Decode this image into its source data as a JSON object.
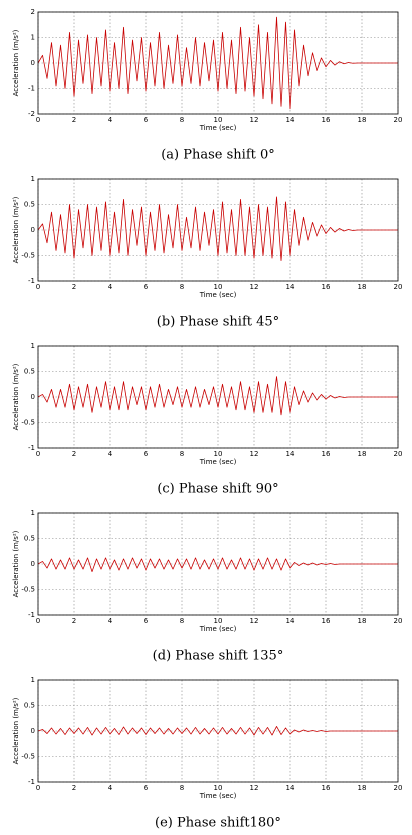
{
  "chart_data": [
    {
      "type": "line",
      "caption": "(a) Phase shift 0°",
      "xlabel": "Time (sec)",
      "ylabel": "Acceleration (m/s²)",
      "grid": true,
      "xlim": [
        0,
        20
      ],
      "xticks": [
        0,
        2,
        4,
        6,
        8,
        10,
        12,
        14,
        16,
        18,
        20
      ],
      "ylim": [
        -2,
        2
      ],
      "yticks": [
        -2,
        -1,
        0,
        1,
        2
      ],
      "x": [
        0,
        0.25,
        0.5,
        0.75,
        1,
        1.25,
        1.5,
        1.75,
        2,
        2.25,
        2.5,
        2.75,
        3,
        3.25,
        3.5,
        3.75,
        4,
        4.25,
        4.5,
        4.75,
        5,
        5.25,
        5.5,
        5.75,
        6,
        6.25,
        6.5,
        6.75,
        7,
        7.25,
        7.5,
        7.75,
        8,
        8.25,
        8.5,
        8.75,
        9,
        9.25,
        9.5,
        9.75,
        10,
        10.25,
        10.5,
        10.75,
        11,
        11.25,
        11.5,
        11.75,
        12,
        12.25,
        12.5,
        12.75,
        13,
        13.25,
        13.5,
        13.75,
        14,
        14.25,
        14.5,
        14.75,
        15,
        15.25,
        15.5,
        15.75,
        16,
        16.25,
        16.5,
        16.75,
        17,
        17.25,
        17.5,
        17.75,
        18,
        18.25,
        18.5,
        18.75,
        19,
        19.25,
        19.5,
        19.75,
        20
      ],
      "series": [
        {
          "color": "#c80000",
          "values": [
            0,
            0.3,
            -0.6,
            0.8,
            -0.9,
            0.7,
            -1.0,
            1.2,
            -1.3,
            0.9,
            -0.8,
            1.1,
            -1.2,
            1.0,
            -0.9,
            1.3,
            -1.1,
            0.8,
            -1.0,
            1.4,
            -1.2,
            0.9,
            -0.7,
            1.0,
            -1.1,
            0.8,
            -0.9,
            1.2,
            -1.0,
            0.7,
            -0.8,
            1.1,
            -0.9,
            0.6,
            -0.8,
            1.0,
            -0.9,
            0.8,
            -0.7,
            0.9,
            -1.1,
            1.2,
            -1.0,
            0.9,
            -1.2,
            1.4,
            -1.1,
            1.0,
            -1.3,
            1.5,
            -1.4,
            1.2,
            -1.6,
            1.8,
            -1.7,
            1.6,
            -1.8,
            1.3,
            -0.9,
            0.7,
            -0.5,
            0.4,
            -0.3,
            0.2,
            -0.15,
            0.1,
            -0.08,
            0.05,
            -0.03,
            0.02,
            -0.01,
            0,
            0,
            0,
            0,
            0,
            0,
            0,
            0,
            0,
            0
          ]
        }
      ]
    },
    {
      "type": "line",
      "caption": "(b) Phase shift 45°",
      "xlabel": "Time (sec)",
      "ylabel": "Acceleration (m/s²)",
      "grid": true,
      "xlim": [
        0,
        20
      ],
      "xticks": [
        0,
        2,
        4,
        6,
        8,
        10,
        12,
        14,
        16,
        18,
        20
      ],
      "ylim": [
        -1,
        1
      ],
      "yticks": [
        -1,
        -0.5,
        0,
        0.5,
        1
      ],
      "x": [
        0,
        0.25,
        0.5,
        0.75,
        1,
        1.25,
        1.5,
        1.75,
        2,
        2.25,
        2.5,
        2.75,
        3,
        3.25,
        3.5,
        3.75,
        4,
        4.25,
        4.5,
        4.75,
        5,
        5.25,
        5.5,
        5.75,
        6,
        6.25,
        6.5,
        6.75,
        7,
        7.25,
        7.5,
        7.75,
        8,
        8.25,
        8.5,
        8.75,
        9,
        9.25,
        9.5,
        9.75,
        10,
        10.25,
        10.5,
        10.75,
        11,
        11.25,
        11.5,
        11.75,
        12,
        12.25,
        12.5,
        12.75,
        13,
        13.25,
        13.5,
        13.75,
        14,
        14.25,
        14.5,
        14.75,
        15,
        15.25,
        15.5,
        15.75,
        16,
        16.25,
        16.5,
        16.75,
        17,
        17.25,
        17.5,
        17.75,
        18,
        18.25,
        18.5,
        18.75,
        19,
        19.25,
        19.5,
        19.75,
        20
      ],
      "series": [
        {
          "color": "#c80000",
          "values": [
            0,
            0.12,
            -0.25,
            0.35,
            -0.4,
            0.3,
            -0.45,
            0.5,
            -0.55,
            0.4,
            -0.35,
            0.5,
            -0.5,
            0.45,
            -0.4,
            0.55,
            -0.5,
            0.35,
            -0.45,
            0.6,
            -0.5,
            0.4,
            -0.3,
            0.45,
            -0.5,
            0.35,
            -0.4,
            0.5,
            -0.45,
            0.3,
            -0.35,
            0.5,
            -0.4,
            0.25,
            -0.35,
            0.45,
            -0.4,
            0.35,
            -0.3,
            0.4,
            -0.5,
            0.55,
            -0.45,
            0.4,
            -0.5,
            0.6,
            -0.5,
            0.45,
            -0.55,
            0.5,
            -0.5,
            0.45,
            -0.55,
            0.65,
            -0.6,
            0.55,
            -0.5,
            0.4,
            -0.3,
            0.25,
            -0.2,
            0.15,
            -0.12,
            0.1,
            -0.07,
            0.05,
            -0.04,
            0.03,
            -0.02,
            0.01,
            -0.01,
            0,
            0,
            0,
            0,
            0,
            0,
            0,
            0,
            0,
            0
          ]
        }
      ]
    },
    {
      "type": "line",
      "caption": "(c) Phase shift 90°",
      "xlabel": "Time (sec)",
      "ylabel": "Acceleration (m/s²)",
      "grid": true,
      "xlim": [
        0,
        20
      ],
      "xticks": [
        0,
        2,
        4,
        6,
        8,
        10,
        12,
        14,
        16,
        18,
        20
      ],
      "ylim": [
        -1,
        1
      ],
      "yticks": [
        -1,
        -0.5,
        0,
        0.5,
        1
      ],
      "x": [
        0,
        0.25,
        0.5,
        0.75,
        1,
        1.25,
        1.5,
        1.75,
        2,
        2.25,
        2.5,
        2.75,
        3,
        3.25,
        3.5,
        3.75,
        4,
        4.25,
        4.5,
        4.75,
        5,
        5.25,
        5.5,
        5.75,
        6,
        6.25,
        6.5,
        6.75,
        7,
        7.25,
        7.5,
        7.75,
        8,
        8.25,
        8.5,
        8.75,
        9,
        9.25,
        9.5,
        9.75,
        10,
        10.25,
        10.5,
        10.75,
        11,
        11.25,
        11.5,
        11.75,
        12,
        12.25,
        12.5,
        12.75,
        13,
        13.25,
        13.5,
        13.75,
        14,
        14.25,
        14.5,
        14.75,
        15,
        15.25,
        15.5,
        15.75,
        16,
        16.25,
        16.5,
        16.75,
        17,
        17.25,
        17.5,
        17.75,
        18,
        18.25,
        18.5,
        18.75,
        19,
        19.25,
        19.5,
        19.75,
        20
      ],
      "series": [
        {
          "color": "#c80000",
          "values": [
            0,
            0.05,
            -0.1,
            0.15,
            -0.2,
            0.15,
            -0.2,
            0.25,
            -0.25,
            0.2,
            -0.2,
            0.25,
            -0.3,
            0.2,
            -0.2,
            0.3,
            -0.25,
            0.2,
            -0.25,
            0.3,
            -0.25,
            0.2,
            -0.15,
            0.2,
            -0.25,
            0.2,
            -0.2,
            0.25,
            -0.2,
            0.15,
            -0.15,
            0.2,
            -0.2,
            0.15,
            -0.2,
            0.2,
            -0.2,
            0.15,
            -0.15,
            0.2,
            -0.2,
            0.25,
            -0.2,
            0.2,
            -0.25,
            0.3,
            -0.25,
            0.2,
            -0.3,
            0.3,
            -0.3,
            0.25,
            -0.3,
            0.4,
            -0.35,
            0.3,
            -0.3,
            0.2,
            -0.15,
            0.12,
            -0.1,
            0.08,
            -0.06,
            0.05,
            -0.04,
            0.03,
            -0.02,
            0.01,
            -0.01,
            0,
            0,
            0,
            0,
            0,
            0,
            0,
            0,
            0,
            0,
            0,
            0
          ]
        }
      ]
    },
    {
      "type": "line",
      "caption": "(d) Phase shift 135°",
      "xlabel": "Time (sec)",
      "ylabel": "Acceleration (m/s²)",
      "grid": true,
      "xlim": [
        0,
        20
      ],
      "xticks": [
        0,
        2,
        4,
        6,
        8,
        10,
        12,
        14,
        16,
        18,
        20
      ],
      "ylim": [
        -1,
        1
      ],
      "yticks": [
        -1,
        -0.5,
        0,
        0.5,
        1
      ],
      "x": [
        0,
        0.25,
        0.5,
        0.75,
        1,
        1.25,
        1.5,
        1.75,
        2,
        2.25,
        2.5,
        2.75,
        3,
        3.25,
        3.5,
        3.75,
        4,
        4.25,
        4.5,
        4.75,
        5,
        5.25,
        5.5,
        5.75,
        6,
        6.25,
        6.5,
        6.75,
        7,
        7.25,
        7.5,
        7.75,
        8,
        8.25,
        8.5,
        8.75,
        9,
        9.25,
        9.5,
        9.75,
        10,
        10.25,
        10.5,
        10.75,
        11,
        11.25,
        11.5,
        11.75,
        12,
        12.25,
        12.5,
        12.75,
        13,
        13.25,
        13.5,
        13.75,
        14,
        14.25,
        14.5,
        14.75,
        15,
        15.25,
        15.5,
        15.75,
        16,
        16.25,
        16.5,
        16.75,
        17,
        17.25,
        17.5,
        17.75,
        18,
        18.25,
        18.5,
        18.75,
        19,
        19.25,
        19.5,
        19.75,
        20
      ],
      "series": [
        {
          "color": "#c80000",
          "values": [
            0,
            0.05,
            -0.08,
            0.1,
            -0.1,
            0.08,
            -0.1,
            0.12,
            -0.1,
            0.08,
            -0.1,
            0.12,
            -0.15,
            0.1,
            -0.1,
            0.12,
            -0.1,
            0.08,
            -0.12,
            0.1,
            -0.1,
            0.12,
            -0.08,
            0.1,
            -0.12,
            0.1,
            -0.08,
            0.1,
            -0.1,
            0.08,
            -0.1,
            0.1,
            -0.08,
            0.1,
            -0.1,
            0.12,
            -0.1,
            0.08,
            -0.1,
            0.1,
            -0.1,
            0.12,
            -0.1,
            0.08,
            -0.1,
            0.12,
            -0.1,
            0.1,
            -0.12,
            0.1,
            -0.1,
            0.12,
            -0.1,
            0.1,
            -0.12,
            0.1,
            -0.08,
            0.03,
            -0.03,
            0.02,
            -0.02,
            0.02,
            -0.02,
            0.01,
            -0.01,
            0.01,
            -0.01,
            0,
            0,
            0,
            0,
            0,
            0,
            0,
            0,
            0,
            0,
            0,
            0,
            0,
            0
          ]
        }
      ]
    },
    {
      "type": "line",
      "caption": "(e) Phase shift180°",
      "xlabel": "Time (sec)",
      "ylabel": "Acceleration (m/s²)",
      "grid": true,
      "xlim": [
        0,
        20
      ],
      "xticks": [
        0,
        2,
        4,
        6,
        8,
        10,
        12,
        14,
        16,
        18,
        20
      ],
      "ylim": [
        -1,
        1
      ],
      "yticks": [
        -1,
        -0.5,
        0,
        0.5,
        1
      ],
      "x": [
        0,
        0.25,
        0.5,
        0.75,
        1,
        1.25,
        1.5,
        1.75,
        2,
        2.25,
        2.5,
        2.75,
        3,
        3.25,
        3.5,
        3.75,
        4,
        4.25,
        4.5,
        4.75,
        5,
        5.25,
        5.5,
        5.75,
        6,
        6.25,
        6.5,
        6.75,
        7,
        7.25,
        7.5,
        7.75,
        8,
        8.25,
        8.5,
        8.75,
        9,
        9.25,
        9.5,
        9.75,
        10,
        10.25,
        10.5,
        10.75,
        11,
        11.25,
        11.5,
        11.75,
        12,
        12.25,
        12.5,
        12.75,
        13,
        13.25,
        13.5,
        13.75,
        14,
        14.25,
        14.5,
        14.75,
        15,
        15.25,
        15.5,
        15.75,
        16,
        16.25,
        16.5,
        16.75,
        17,
        17.25,
        17.5,
        17.75,
        18,
        18.25,
        18.5,
        18.75,
        19,
        19.25,
        19.5,
        19.75,
        20
      ],
      "series": [
        {
          "color": "#c80000",
          "values": [
            0,
            0.03,
            -0.05,
            0.06,
            -0.06,
            0.05,
            -0.07,
            0.06,
            -0.05,
            0.06,
            -0.06,
            0.07,
            -0.08,
            0.06,
            -0.06,
            0.07,
            -0.06,
            0.05,
            -0.07,
            0.08,
            -0.06,
            0.06,
            -0.05,
            0.06,
            -0.07,
            0.06,
            -0.05,
            0.06,
            -0.06,
            0.05,
            -0.06,
            0.06,
            -0.05,
            0.06,
            -0.06,
            0.07,
            -0.06,
            0.05,
            -0.06,
            0.06,
            -0.06,
            0.07,
            -0.06,
            0.05,
            -0.06,
            0.07,
            -0.06,
            0.06,
            -0.08,
            0.07,
            -0.06,
            0.07,
            -0.08,
            0.09,
            -0.07,
            0.06,
            -0.06,
            0.02,
            -0.02,
            0.02,
            -0.01,
            0.01,
            -0.01,
            0.01,
            -0.01,
            0,
            0,
            0,
            0,
            0,
            0,
            0,
            0,
            0,
            0,
            0,
            0,
            0,
            0,
            0,
            0
          ]
        }
      ]
    }
  ]
}
